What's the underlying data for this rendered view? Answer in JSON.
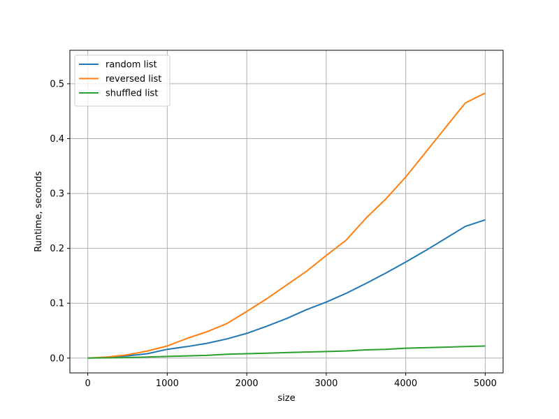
{
  "chart_data": {
    "type": "line",
    "title": "",
    "xlabel": "size",
    "ylabel": "Runtime, seconds",
    "xlim": [
      -225,
      5225
    ],
    "ylim": [
      -0.027,
      0.561
    ],
    "x_ticks": [
      0,
      1000,
      2000,
      3000,
      4000,
      5000
    ],
    "y_ticks": [
      0.0,
      0.1,
      0.2,
      0.3,
      0.4,
      0.5
    ],
    "x_tick_labels": [
      "0",
      "1000",
      "2000",
      "3000",
      "4000",
      "5000"
    ],
    "y_tick_labels": [
      "0.0",
      "0.1",
      "0.2",
      "0.3",
      "0.4",
      "0.5"
    ],
    "grid": true,
    "legend_position": "top-left",
    "x": [
      0,
      250,
      500,
      750,
      1000,
      1250,
      1500,
      1750,
      2000,
      2250,
      2500,
      2750,
      3000,
      3250,
      3500,
      3750,
      4000,
      4250,
      4500,
      4750,
      5000
    ],
    "series": [
      {
        "name": "random list",
        "color": "#1f77b4",
        "values": [
          0.0,
          0.002,
          0.004,
          0.008,
          0.016,
          0.021,
          0.027,
          0.035,
          0.045,
          0.058,
          0.072,
          0.088,
          0.102,
          0.118,
          0.136,
          0.155,
          0.175,
          0.196,
          0.218,
          0.24,
          0.252
        ]
      },
      {
        "name": "reversed list",
        "color": "#ff7f0e",
        "values": [
          0.0,
          0.002,
          0.006,
          0.013,
          0.022,
          0.036,
          0.048,
          0.063,
          0.085,
          0.108,
          0.133,
          0.158,
          0.187,
          0.215,
          0.255,
          0.29,
          0.33,
          0.375,
          0.42,
          0.465,
          0.483
        ]
      },
      {
        "name": "shuffled list",
        "color": "#2ca02c",
        "values": [
          0.0,
          0.0005,
          0.001,
          0.002,
          0.003,
          0.004,
          0.005,
          0.007,
          0.008,
          0.009,
          0.01,
          0.011,
          0.012,
          0.013,
          0.015,
          0.016,
          0.018,
          0.019,
          0.02,
          0.021,
          0.022
        ]
      }
    ]
  }
}
